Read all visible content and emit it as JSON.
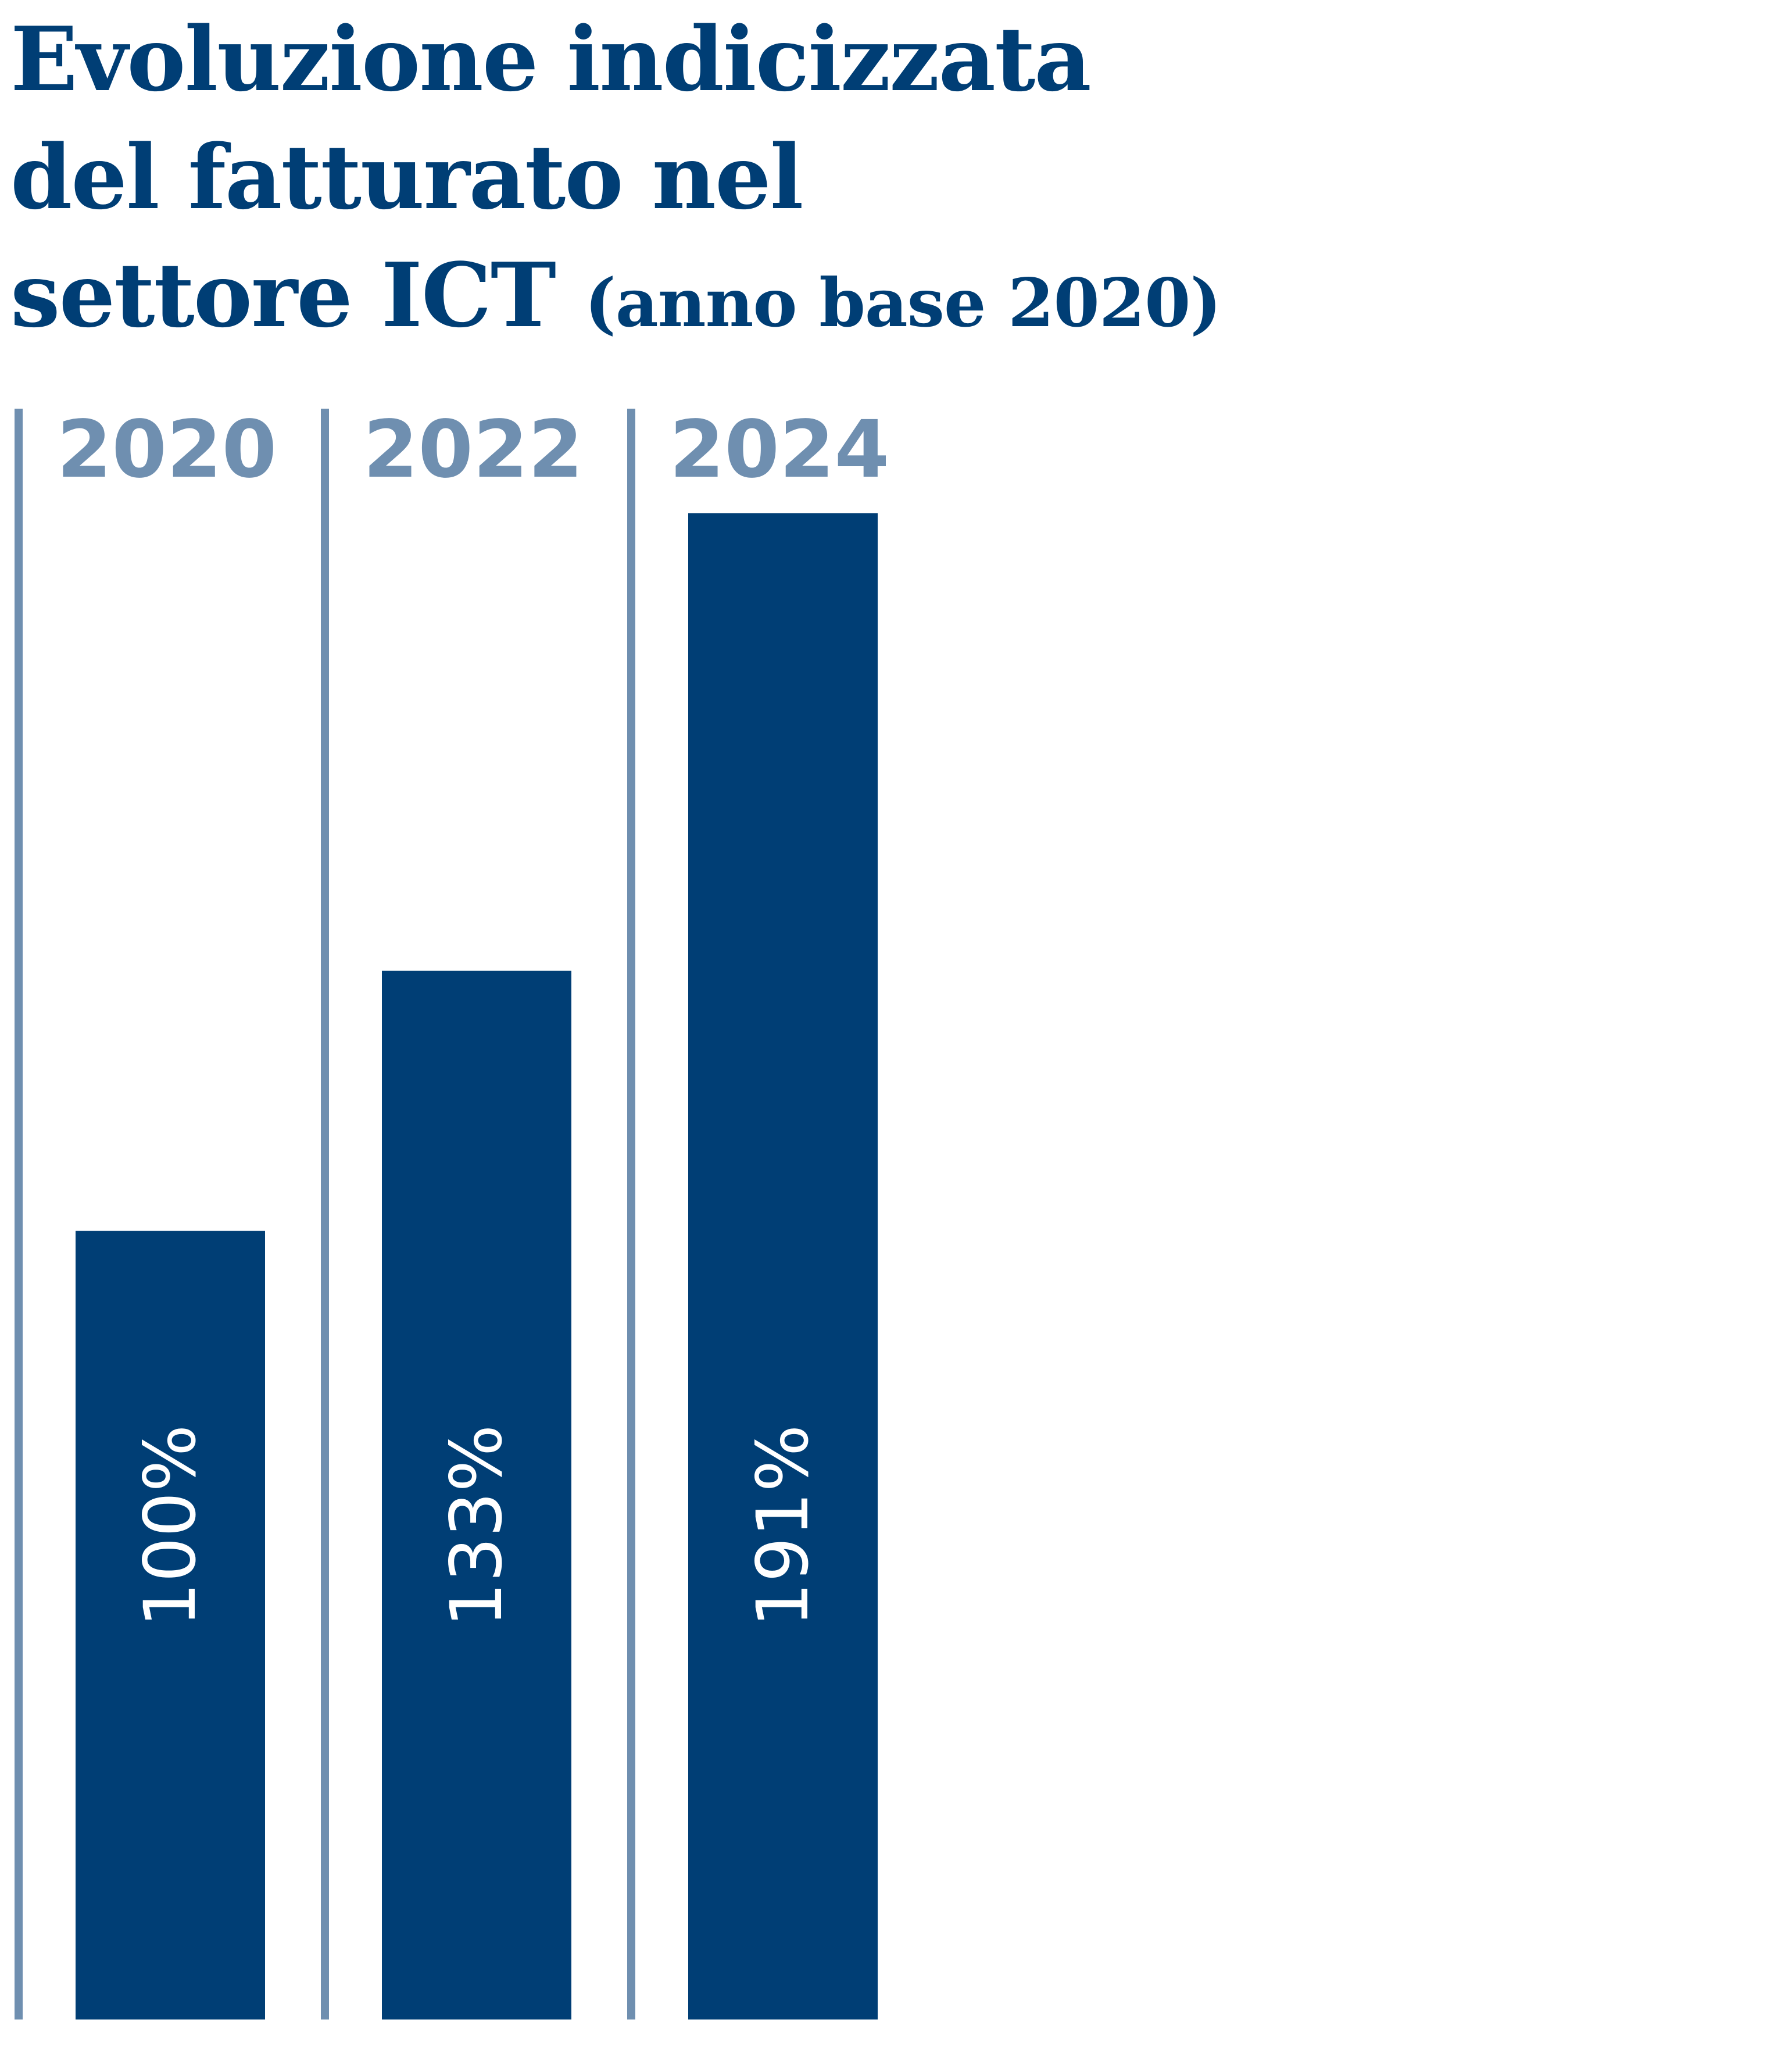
{
  "title": {
    "line1": "Evoluzione indicizzata",
    "line2": "del fatturato nel",
    "line3_main": "settore ICT",
    "line3_sub": "(anno base 2020)"
  },
  "colors": {
    "bar": "#003e75",
    "divider": "#6f8fb0",
    "year_label": "#6f8fb0",
    "title": "#003e75",
    "value_label": "#ffffff"
  },
  "chart_data": {
    "type": "bar",
    "title": "Evoluzione indicizzata del fatturato nel settore ICT (anno base 2020)",
    "categories": [
      "2020",
      "2022",
      "2024"
    ],
    "values": [
      100,
      133,
      191
    ],
    "value_labels": [
      "100%",
      "133%",
      "191%"
    ],
    "unit": "%",
    "ylim": [
      0,
      191
    ],
    "grid": false,
    "legend": "none"
  }
}
